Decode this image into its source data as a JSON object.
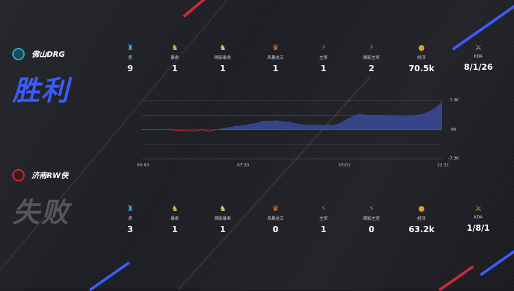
{
  "teams": [
    {
      "name": "佛山DRG",
      "result": "胜利",
      "result_color": "#3b5bff",
      "logo_color": "#2aa8e0",
      "stats": [
        {
          "label": "塔",
          "value": "9",
          "icon": "tower-icon"
        },
        {
          "label": "暴君",
          "value": "1",
          "icon": "tyrant-icon"
        },
        {
          "label": "暗影暴君",
          "value": "1",
          "icon": "shadow-tyrant-icon"
        },
        {
          "label": "风暴龙王",
          "value": "1",
          "icon": "storm-dragon-icon"
        },
        {
          "label": "主宰",
          "value": "1",
          "icon": "overlord-icon"
        },
        {
          "label": "暗影主宰",
          "value": "2",
          "icon": "shadow-overlord-icon"
        },
        {
          "label": "经济",
          "value": "70.5k",
          "icon": "gold-coin-icon"
        },
        {
          "label": "KDA",
          "value": "8/1/26",
          "icon": "sword-icon"
        }
      ]
    },
    {
      "name": "济南RW侠",
      "result": "失败",
      "result_color": "#55565c",
      "logo_color": "#d0283a",
      "stats": [
        {
          "label": "塔",
          "value": "3",
          "icon": "tower-icon"
        },
        {
          "label": "暴君",
          "value": "1",
          "icon": "tyrant-icon"
        },
        {
          "label": "暗影暴君",
          "value": "1",
          "icon": "shadow-tyrant-icon"
        },
        {
          "label": "风暴龙王",
          "value": "0",
          "icon": "storm-dragon-icon"
        },
        {
          "label": "主宰",
          "value": "1",
          "icon": "overlord-icon"
        },
        {
          "label": "暗影主宰",
          "value": "0",
          "icon": "shadow-overlord-icon"
        },
        {
          "label": "经济",
          "value": "63.2k",
          "icon": "gold-coin-icon"
        },
        {
          "label": "KDA",
          "value": "1/8/1",
          "icon": "sword-icon"
        }
      ]
    }
  ],
  "chart_data": {
    "type": "area",
    "x_ticks": [
      "00:00",
      "07:30",
      "15:01",
      "22:31"
    ],
    "y_ticks": [
      "7.3K",
      "0K",
      "-7.3K"
    ],
    "ylim": [
      -7.3,
      7.3
    ],
    "xlim_minutes": [
      0,
      22.52
    ],
    "positive_color": "#3a4a9a",
    "negative_color": "#c0283a",
    "points": [
      [
        0,
        0
      ],
      [
        1,
        0.1
      ],
      [
        2,
        0
      ],
      [
        3,
        -0.2
      ],
      [
        4,
        -0.3
      ],
      [
        4.5,
        0.1
      ],
      [
        5,
        -0.4
      ],
      [
        5.5,
        0
      ],
      [
        6,
        0.3
      ],
      [
        7,
        0.9
      ],
      [
        8,
        1.3
      ],
      [
        9,
        2.1
      ],
      [
        10,
        2.3
      ],
      [
        11,
        2.0
      ],
      [
        12,
        1.3
      ],
      [
        13,
        1.2
      ],
      [
        14,
        1.1
      ],
      [
        14.8,
        1.5
      ],
      [
        15.5,
        2.9
      ],
      [
        16.3,
        4.0
      ],
      [
        17,
        3.6
      ],
      [
        18,
        3.6
      ],
      [
        19,
        3.5
      ],
      [
        20,
        3.4
      ],
      [
        21,
        3.9
      ],
      [
        21.8,
        5.0
      ],
      [
        22.3,
        6.2
      ],
      [
        22.52,
        7.0
      ]
    ]
  }
}
